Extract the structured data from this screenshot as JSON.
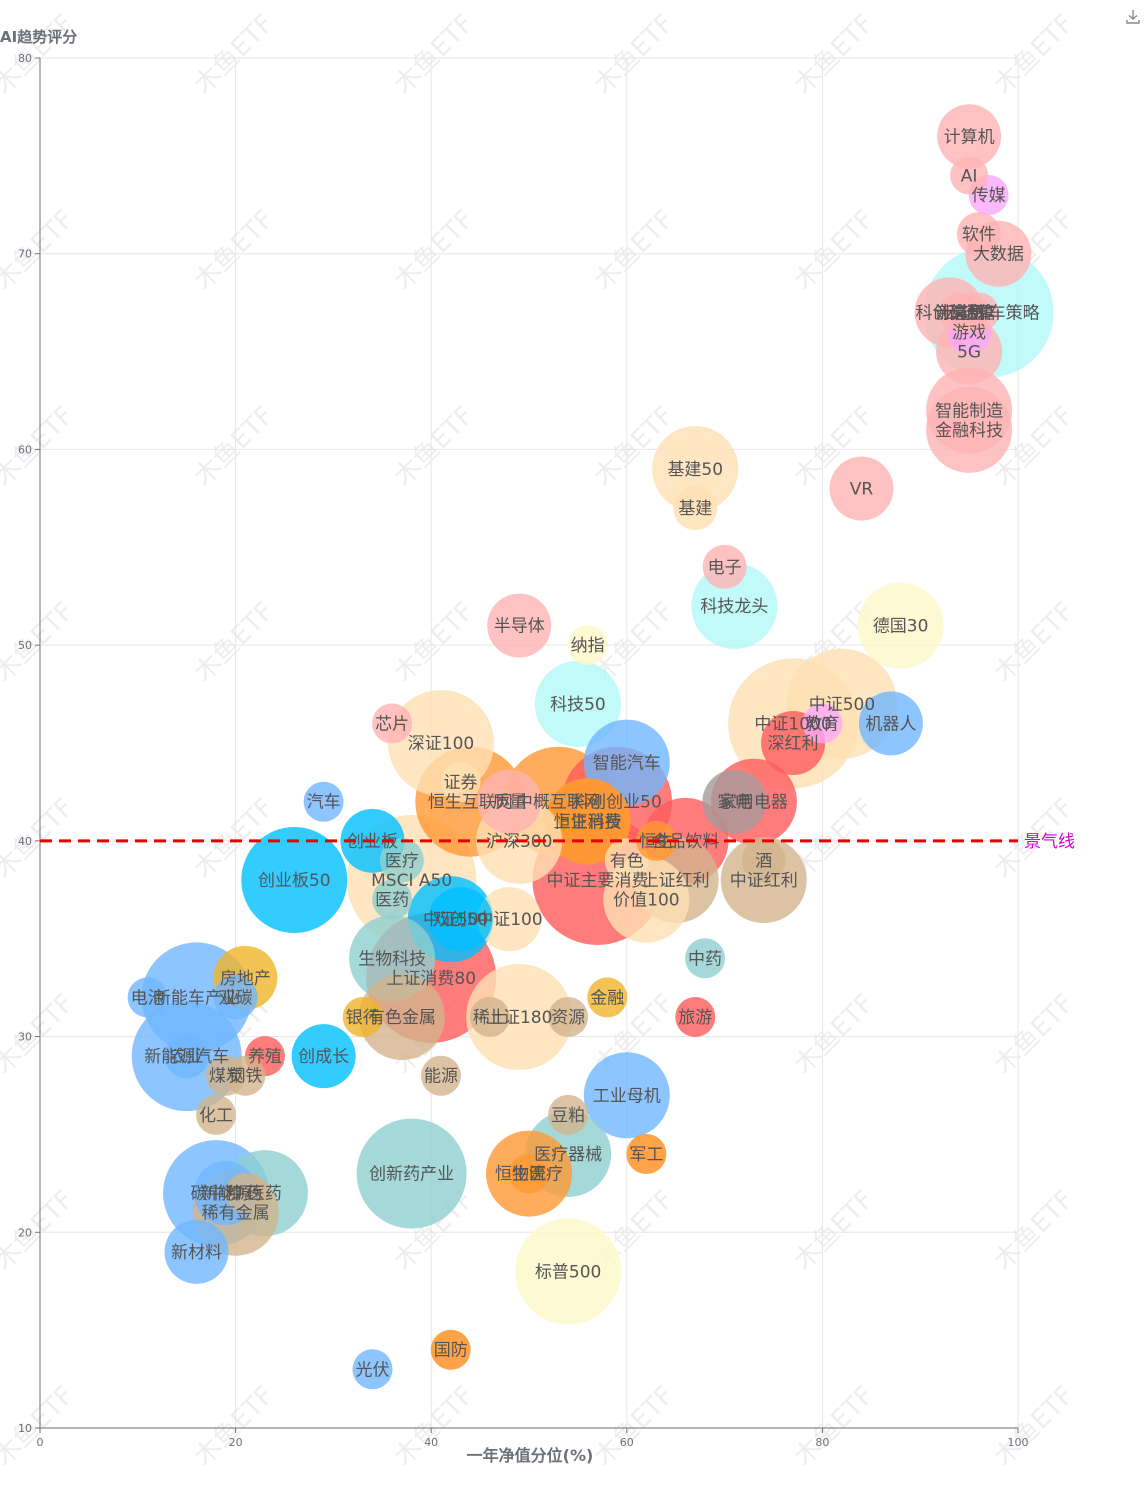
{
  "chart_data": {
    "type": "scatter",
    "ylabel": "AI趋势评分",
    "xlabel": "一年净值分位(%)",
    "xlim": [
      0,
      100
    ],
    "ylim": [
      10,
      80
    ],
    "xticks": [
      0,
      20,
      40,
      60,
      80,
      100
    ],
    "yticks": [
      10,
      20,
      30,
      40,
      50,
      60,
      70,
      80
    ],
    "grid": true,
    "watermark": "木鱼ETF",
    "reference_line": {
      "y": 40,
      "label": "景气线",
      "color": "#e60000"
    },
    "points": [
      {
        "name": "计算机",
        "x": 95,
        "y": 76,
        "size": 64,
        "color": "#ffb3b3"
      },
      {
        "name": "AI",
        "x": 95,
        "y": 74,
        "size": 38,
        "color": "#ffb3b3"
      },
      {
        "name": "传媒",
        "x": 97,
        "y": 73,
        "size": 40,
        "color": "#f9a8f9"
      },
      {
        "name": "软件",
        "x": 96,
        "y": 71,
        "size": 44,
        "color": "#ffb3b3"
      },
      {
        "name": "大数据",
        "x": 98,
        "y": 70,
        "size": 66,
        "color": "#ffb3b3"
      },
      {
        "name": "新能源车策略",
        "x": 97,
        "y": 67,
        "size": 130,
        "color": "#b3f7f7"
      },
      {
        "name": "科创信息",
        "x": 93,
        "y": 67,
        "size": 70,
        "color": "#ffb3b3"
      },
      {
        "name": "计算机",
        "x": 94,
        "y": 67,
        "size": 40,
        "color": "#ffb3b3"
      },
      {
        "name": "云计算",
        "x": 95,
        "y": 67,
        "size": 40,
        "color": "#ffb3b3"
      },
      {
        "name": "通信",
        "x": 96,
        "y": 67,
        "size": 40,
        "color": "#ffb3b3"
      },
      {
        "name": "游戏",
        "x": 95,
        "y": 66,
        "size": 44,
        "color": "#f9a8f9"
      },
      {
        "name": "5G",
        "x": 95,
        "y": 65,
        "size": 66,
        "color": "#ffb3b3"
      },
      {
        "name": "智能制造",
        "x": 95,
        "y": 62,
        "size": 86,
        "color": "#ffb3b3"
      },
      {
        "name": "金融科技",
        "x": 95,
        "y": 61,
        "size": 86,
        "color": "#ffb3b3"
      },
      {
        "name": "VR",
        "x": 84,
        "y": 58,
        "size": 64,
        "color": "#ffb3b3"
      },
      {
        "name": "基建50",
        "x": 67,
        "y": 59,
        "size": 86,
        "color": "#ffe0b3"
      },
      {
        "name": "基建",
        "x": 67,
        "y": 57,
        "size": 44,
        "color": "#ffe0b3"
      },
      {
        "name": "电子",
        "x": 70,
        "y": 54,
        "size": 44,
        "color": "#ffb3b3"
      },
      {
        "name": "科技龙头",
        "x": 71,
        "y": 52,
        "size": 86,
        "color": "#b3f7f7"
      },
      {
        "name": "德国30",
        "x": 88,
        "y": 51,
        "size": 86,
        "color": "#fbf7c8"
      },
      {
        "name": "半导体",
        "x": 49,
        "y": 51,
        "size": 64,
        "color": "#ffb3b3"
      },
      {
        "name": "纳指",
        "x": 56,
        "y": 50,
        "size": 40,
        "color": "#fbf7c8"
      },
      {
        "name": "科技50",
        "x": 55,
        "y": 47,
        "size": 86,
        "color": "#b3f7f7"
      },
      {
        "name": "芯片",
        "x": 36,
        "y": 46,
        "size": 40,
        "color": "#ffb3b3"
      },
      {
        "name": "深证100",
        "x": 41,
        "y": 45,
        "size": 106,
        "color": "#ffe0b3"
      },
      {
        "name": "中证500",
        "x": 82,
        "y": 47,
        "size": 110,
        "color": "#ffe0b3"
      },
      {
        "name": "中证1000",
        "x": 77,
        "y": 46,
        "size": 130,
        "color": "#ffe0b3"
      },
      {
        "name": "教育",
        "x": 80,
        "y": 46,
        "size": 40,
        "color": "#f9a8f9"
      },
      {
        "name": "机器人",
        "x": 87,
        "y": 46,
        "size": 64,
        "color": "#6fb6ff"
      },
      {
        "name": "深红利",
        "x": 77,
        "y": 45,
        "size": 64,
        "color": "#ff5b5b"
      },
      {
        "name": "智能汽车",
        "x": 60,
        "y": 44,
        "size": 86,
        "color": "#6fb6ff"
      },
      {
        "name": "家电",
        "x": 71,
        "y": 42,
        "size": 64,
        "color": "#a89a9a"
      },
      {
        "name": "家用电器",
        "x": 73,
        "y": 42,
        "size": 86,
        "color": "#ff5b5b"
      },
      {
        "name": "汽车",
        "x": 29,
        "y": 42,
        "size": 40,
        "color": "#6fb6ff"
      },
      {
        "name": "证券",
        "x": 43,
        "y": 43,
        "size": 40,
        "color": "#ffe0b3"
      },
      {
        "name": "恒生互联网",
        "x": 44,
        "y": 42,
        "size": 110,
        "color": "#ff9933"
      },
      {
        "name": "质量",
        "x": 48,
        "y": 42,
        "size": 64,
        "color": "#ffb3b3"
      },
      {
        "name": "中概互联网",
        "x": 53,
        "y": 42,
        "size": 110,
        "color": "#ff9933"
      },
      {
        "name": "科创创业50",
        "x": 59,
        "y": 42,
        "size": 110,
        "color": "#ff5b5b"
      },
      {
        "name": "上证消费",
        "x": 56,
        "y": 41,
        "size": 86,
        "color": "#ff9933"
      },
      {
        "name": "恒生科技",
        "x": 56,
        "y": 41,
        "size": 86,
        "color": "#ff9933"
      },
      {
        "name": "沪深300",
        "x": 49,
        "y": 40,
        "size": 86,
        "color": "#ffe0b3"
      },
      {
        "name": "创业板",
        "x": 34,
        "y": 40,
        "size": 64,
        "color": "#00bfff"
      },
      {
        "name": "恒生",
        "x": 63,
        "y": 40,
        "size": 40,
        "color": "#ff9933"
      },
      {
        "name": "食品饮料",
        "x": 66,
        "y": 40,
        "size": 86,
        "color": "#ff5b5b"
      },
      {
        "name": "有色",
        "x": 60,
        "y": 39,
        "size": 44,
        "color": "#ffe0b3"
      },
      {
        "name": "酒",
        "x": 74,
        "y": 39,
        "size": 44,
        "color": "#d2b48c"
      },
      {
        "name": "中证红利",
        "x": 74,
        "y": 38,
        "size": 86,
        "color": "#d2b48c"
      },
      {
        "name": "医疗",
        "x": 37,
        "y": 39,
        "size": 44,
        "color": "#8fcfcf"
      },
      {
        "name": "MSCI A50",
        "x": 38,
        "y": 38,
        "size": 130,
        "color": "#ffe0b3"
      },
      {
        "name": "上证红利",
        "x": 65,
        "y": 38,
        "size": 86,
        "color": "#d2b48c"
      },
      {
        "name": "中证主要消费",
        "x": 57,
        "y": 38,
        "size": 130,
        "color": "#ff5b5b"
      },
      {
        "name": "价值100",
        "x": 62,
        "y": 37,
        "size": 86,
        "color": "#ffe0b3"
      },
      {
        "name": "创业板50",
        "x": 26,
        "y": 38,
        "size": 106,
        "color": "#00bfff"
      },
      {
        "name": "医药",
        "x": 36,
        "y": 37,
        "size": 40,
        "color": "#8fcfcf"
      },
      {
        "name": "中证100",
        "x": 48,
        "y": 36,
        "size": 64,
        "color": "#ffe0b3"
      },
      {
        "name": "中证50",
        "x": 42,
        "y": 36,
        "size": 86,
        "color": "#00bfff"
      },
      {
        "name": "双创50",
        "x": 43,
        "y": 36,
        "size": 64,
        "color": "#00bfff"
      },
      {
        "name": "生物科技",
        "x": 36,
        "y": 34,
        "size": 86,
        "color": "#8fcfcf"
      },
      {
        "name": "上证消费80",
        "x": 40,
        "y": 33,
        "size": 130,
        "color": "#ff5b5b"
      },
      {
        "name": "中药",
        "x": 68,
        "y": 34,
        "size": 40,
        "color": "#8fcfcf"
      },
      {
        "name": "房地产",
        "x": 21,
        "y": 33,
        "size": 64,
        "color": "#f0b429"
      },
      {
        "name": "金融",
        "x": 58,
        "y": 32,
        "size": 40,
        "color": "#f0b429"
      },
      {
        "name": "电池",
        "x": 11,
        "y": 32,
        "size": 40,
        "color": "#6fb6ff"
      },
      {
        "name": "双碳",
        "x": 20,
        "y": 32,
        "size": 44,
        "color": "#6fb6ff"
      },
      {
        "name": "新能车产业",
        "x": 16,
        "y": 32,
        "size": 110,
        "color": "#6fb6ff"
      },
      {
        "name": "银行",
        "x": 33,
        "y": 31,
        "size": 40,
        "color": "#f0b429"
      },
      {
        "name": "稀土",
        "x": 46,
        "y": 31,
        "size": 40,
        "color": "#d2b48c"
      },
      {
        "name": "有色金属",
        "x": 37,
        "y": 31,
        "size": 86,
        "color": "#d2b48c"
      },
      {
        "name": "上证180",
        "x": 49,
        "y": 31,
        "size": 106,
        "color": "#ffe0b3"
      },
      {
        "name": "资源",
        "x": 54,
        "y": 31,
        "size": 40,
        "color": "#d2b48c"
      },
      {
        "name": "旅游",
        "x": 67,
        "y": 31,
        "size": 40,
        "color": "#ff5b5b"
      },
      {
        "name": "农业",
        "x": 15,
        "y": 29,
        "size": 44,
        "color": "#6fb6ff"
      },
      {
        "name": "新能源汽车",
        "x": 15,
        "y": 29,
        "size": 110,
        "color": "#6fb6ff"
      },
      {
        "name": "养殖",
        "x": 23,
        "y": 29,
        "size": 40,
        "color": "#ff5b5b"
      },
      {
        "name": "创成长",
        "x": 29,
        "y": 29,
        "size": 64,
        "color": "#00bfff"
      },
      {
        "name": "钢铁",
        "x": 21,
        "y": 28,
        "size": 40,
        "color": "#d2b48c"
      },
      {
        "name": "煤炭",
        "x": 19,
        "y": 28,
        "size": 40,
        "color": "#d2b48c"
      },
      {
        "name": "能源",
        "x": 41,
        "y": 28,
        "size": 40,
        "color": "#d2b48c"
      },
      {
        "name": "工业母机",
        "x": 60,
        "y": 27,
        "size": 86,
        "color": "#6fb6ff"
      },
      {
        "name": "化工",
        "x": 18,
        "y": 26,
        "size": 40,
        "color": "#d2b48c"
      },
      {
        "name": "豆粕",
        "x": 54,
        "y": 26,
        "size": 40,
        "color": "#d2b48c"
      },
      {
        "name": "创新药产业",
        "x": 38,
        "y": 23,
        "size": 110,
        "color": "#8fcfcf"
      },
      {
        "name": "医疗器械",
        "x": 54,
        "y": 24,
        "size": 86,
        "color": "#8fcfcf"
      },
      {
        "name": "物流",
        "x": 50,
        "y": 23,
        "size": 40,
        "color": "#ff9933"
      },
      {
        "name": "恒生医疗",
        "x": 50,
        "y": 23,
        "size": 86,
        "color": "#ff9933"
      },
      {
        "name": "军工",
        "x": 62,
        "y": 24,
        "size": 40,
        "color": "#ff8c1a"
      },
      {
        "name": "碳中和",
        "x": 18,
        "y": 22,
        "size": 106,
        "color": "#6fb6ff"
      },
      {
        "name": "新能源",
        "x": 19,
        "y": 22,
        "size": 64,
        "color": "#6fb6ff"
      },
      {
        "name": "中药",
        "x": 21,
        "y": 22,
        "size": 40,
        "color": "#d2b48c"
      },
      {
        "name": "医药",
        "x": 23,
        "y": 22,
        "size": 86,
        "color": "#8fcfcf"
      },
      {
        "name": "稀有金属",
        "x": 20,
        "y": 21,
        "size": 86,
        "color": "#d2b48c"
      },
      {
        "name": "新材料",
        "x": 16,
        "y": 19,
        "size": 64,
        "color": "#6fb6ff"
      },
      {
        "name": "标普500",
        "x": 54,
        "y": 18,
        "size": 106,
        "color": "#fbf7c8"
      },
      {
        "name": "光伏",
        "x": 34,
        "y": 13,
        "size": 40,
        "color": "#6fb6ff"
      },
      {
        "name": "国防",
        "x": 42,
        "y": 14,
        "size": 40,
        "color": "#ff8c1a"
      }
    ]
  }
}
